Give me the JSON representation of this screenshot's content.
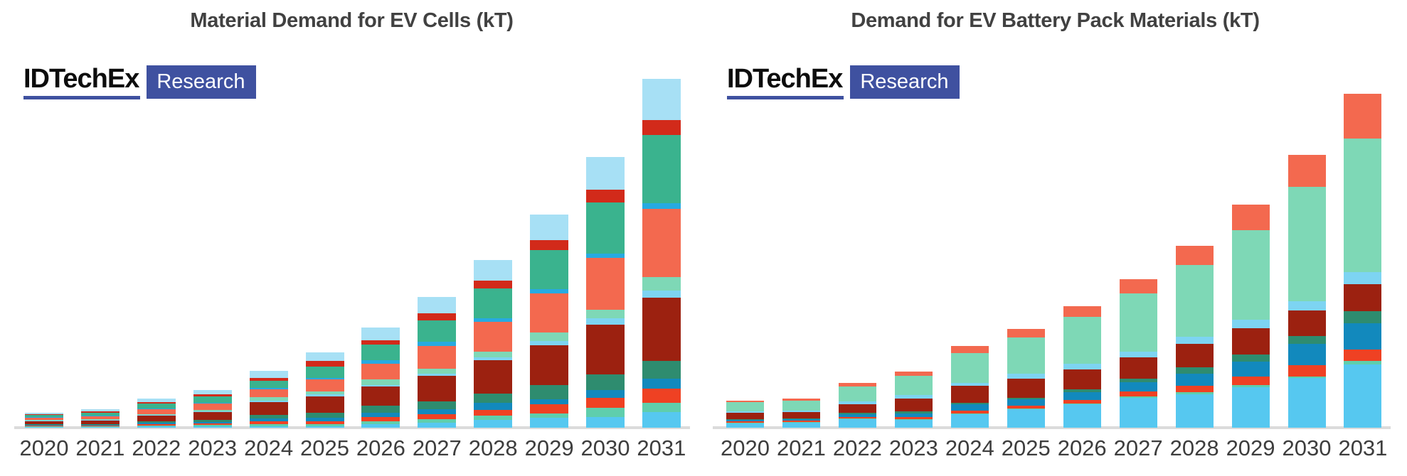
{
  "axis": {
    "line_color": "#DBDBDB",
    "label_color": "#3D3D3D",
    "y_axis_visible": false
  },
  "charts": [
    {
      "title": "Material Demand for EV Cells (kT)",
      "logo": {
        "brand": "IDTechEx",
        "label": "Research",
        "accent_color": "#3F51A0"
      },
      "chart_data": {
        "type": "bar",
        "stacked": true,
        "legend": "none",
        "grid": false,
        "value_scale": "pixel-proportional estimates (no y-axis labels shown in source)",
        "categories": [
          "2020",
          "2021",
          "2022",
          "2023",
          "2024",
          "2025",
          "2026",
          "2027",
          "2028",
          "2029",
          "2030",
          "2031"
        ],
        "series": [
          {
            "name": "sky-blue",
            "color": "#56C8F0",
            "values": [
              1,
              1,
              2,
              2,
              2,
              2,
              5,
              7,
              11,
              14,
              15,
              22
            ]
          },
          {
            "name": "aquamarine",
            "color": "#5FCEAC",
            "values": [
              1,
              1,
              1,
              2,
              3,
              3,
              4,
              5,
              6,
              6,
              13,
              13
            ]
          },
          {
            "name": "red-orange",
            "color": "#EF4123",
            "values": [
              1,
              1,
              2,
              2,
              4,
              4,
              6,
              7,
              8,
              13,
              14,
              20
            ]
          },
          {
            "name": "ocean-blue",
            "color": "#1289BD",
            "values": [
              1,
              1,
              2,
              2,
              4,
              5,
              6,
              7,
              10,
              7,
              11,
              14
            ]
          },
          {
            "name": "dark-teal",
            "color": "#2E8C6F",
            "values": [
              1,
              1,
              2,
              3,
              5,
              7,
              10,
              11,
              13,
              20,
              22,
              25
            ]
          },
          {
            "name": "dark-red",
            "color": "#9C2110",
            "values": [
              4,
              5,
              8,
              11,
              18,
              23,
              27,
              36,
              47,
              56,
              70,
              89
            ]
          },
          {
            "name": "light-sky-blue",
            "color": "#7DD4F2",
            "values": [
              1,
              1,
              1,
              1,
              2,
              3,
              2,
              3,
              4,
              6,
              9,
              10
            ]
          },
          {
            "name": "light-aquamarine",
            "color": "#7ED8B6",
            "values": [
              1,
              1,
              1,
              2,
              5,
              4,
              8,
              7,
              8,
              12,
              12,
              19
            ]
          },
          {
            "name": "salmon",
            "color": "#F3694F",
            "values": [
              3,
              4,
              7,
              9,
              11,
              17,
              22,
              32,
              42,
              55,
              73,
              96
            ]
          },
          {
            "name": "bright-blue",
            "color": "#27AAE1",
            "values": [
              1,
              1,
              1,
              1,
              2,
              2,
              5,
              6,
              5,
              6,
              6,
              8
            ]
          },
          {
            "name": "teal-green",
            "color": "#3AB38E",
            "values": [
              3,
              4,
              7,
              9,
              10,
              16,
              22,
              30,
              42,
              55,
              72,
              96
            ]
          },
          {
            "name": "red",
            "color": "#D22A1A",
            "values": [
              1,
              2,
              2,
              3,
              4,
              8,
              6,
              10,
              11,
              14,
              18,
              21
            ]
          },
          {
            "name": "pale-blue",
            "color": "#A7E0F5",
            "values": [
              2,
              3,
              5,
              6,
              10,
              12,
              18,
              23,
              29,
              36,
              46,
              58
            ]
          }
        ]
      }
    },
    {
      "title": "Demand for EV Battery Pack Materials (kT)",
      "logo": {
        "brand": "IDTechEx",
        "label": "Research",
        "accent_color": "#3F51A0"
      },
      "chart_data": {
        "type": "bar",
        "stacked": true,
        "legend": "none",
        "grid": false,
        "value_scale": "pixel-proportional estimates (no y-axis labels shown in source)",
        "categories": [
          "2020",
          "2021",
          "2022",
          "2023",
          "2024",
          "2025",
          "2026",
          "2027",
          "2028",
          "2029",
          "2030",
          "2031"
        ],
        "series": [
          {
            "name": "sky-blue",
            "color": "#56C8F0",
            "values": [
              6,
              7,
              12,
              11,
              19,
              26,
              33,
              42,
              47,
              57,
              70,
              89
            ]
          },
          {
            "name": "aquamarine",
            "color": "#5FCEAC",
            "values": [
              1,
              1,
              1,
              1,
              1,
              1,
              1,
              2,
              3,
              3,
              2,
              5
            ]
          },
          {
            "name": "red-orange",
            "color": "#EF4123",
            "values": [
              2,
              2,
              2,
              3,
              4,
              4,
              5,
              7,
              9,
              12,
              16,
              16
            ]
          },
          {
            "name": "ocean-blue",
            "color": "#1289BD",
            "values": [
              2,
              2,
              4,
              5,
              9,
              9,
              11,
              13,
              17,
              21,
              30,
              37
            ]
          },
          {
            "name": "dark-teal",
            "color": "#2E8C6F",
            "values": [
              1,
              1,
              2,
              3,
              2,
              2,
              4,
              5,
              9,
              10,
              11,
              17
            ]
          },
          {
            "name": "dark-red",
            "color": "#9C2110",
            "values": [
              9,
              9,
              12,
              18,
              24,
              27,
              28,
              30,
              33,
              37,
              36,
              38
            ]
          },
          {
            "name": "light-sky-blue",
            "color": "#7DD4F2",
            "values": [
              2,
              2,
              4,
              5,
              4,
              7,
              8,
              8,
              10,
              12,
              13,
              17
            ]
          },
          {
            "name": "light-aquamarine",
            "color": "#7ED8B6",
            "values": [
              13,
              14,
              21,
              27,
              42,
              51,
              66,
              82,
              101,
              126,
              161,
              188
            ]
          },
          {
            "name": "salmon",
            "color": "#F3694F",
            "values": [
              2,
              3,
              5,
              6,
              10,
              12,
              15,
              20,
              27,
              36,
              45,
              63
            ]
          }
        ]
      }
    }
  ]
}
